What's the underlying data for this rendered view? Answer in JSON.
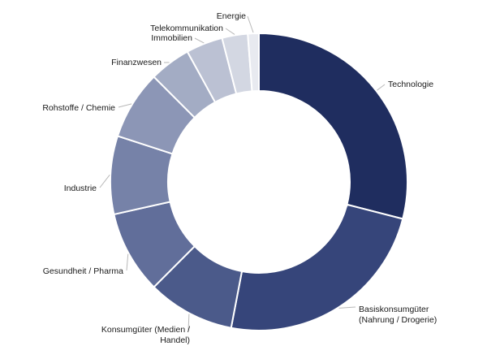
{
  "chart_data": {
    "type": "pie",
    "variant": "donut",
    "title": "",
    "legend": "none",
    "unit": "%",
    "categories": [
      "Technologie",
      "Basiskonsumgüter (Nahrung / Drogerie)",
      "Konsumgüter (Medien / Handel)",
      "Gesundheit / Pharma",
      "Industrie",
      "Rohstoffe / Chemie",
      "Finanzwesen",
      "Immobilien",
      "Telekommunikation",
      "Energie"
    ],
    "values": [
      29.0,
      24.0,
      9.5,
      9.0,
      8.5,
      7.5,
      4.5,
      4.0,
      2.8,
      1.2
    ],
    "labels": [
      [
        "Technologie"
      ],
      [
        "Basiskonsumgüter",
        "(Nahrung / Drogerie)"
      ],
      [
        "Konsumgüter (Medien /",
        "Handel)"
      ],
      [
        "Gesundheit / Pharma"
      ],
      [
        "Industrie"
      ],
      [
        "Rohstoffe / Chemie"
      ],
      [
        "Finanzwesen"
      ],
      [
        "Immobilien"
      ],
      [
        "Telekommunikation"
      ],
      [
        "Energie"
      ]
    ],
    "colors": [
      "#1f2d5f",
      "#36457a",
      "#4b5a8a",
      "#616e9a",
      "#7682a8",
      "#8c96b6",
      "#a3acc4",
      "#bbc1d3",
      "#d3d7e2",
      "#e8eaf0"
    ]
  }
}
